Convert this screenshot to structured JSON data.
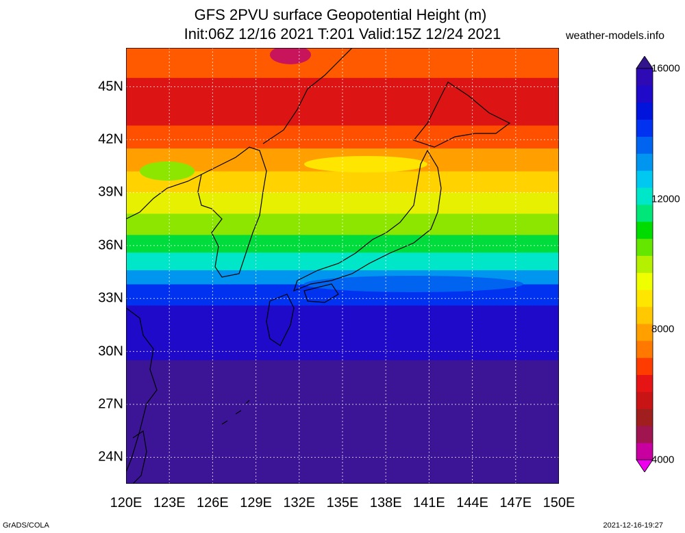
{
  "title_line1": "GFS 2PVU surface Geopotential Height (m)",
  "title_line2": "Init:06Z 12/16 2021 T:201 Valid:15Z 12/24 2021",
  "site": "weather-models.info",
  "footer_left": "GrADS/COLA",
  "footer_right": "2021-12-16-19:27",
  "lat_labels": [
    "45N",
    "42N",
    "39N",
    "36N",
    "33N",
    "30N",
    "27N",
    "24N"
  ],
  "lon_labels": [
    "120E",
    "123E",
    "126E",
    "129E",
    "132E",
    "135E",
    "138E",
    "141E",
    "144E",
    "147E",
    "150E"
  ],
  "colorbar": {
    "min": 4000,
    "max": 16000,
    "labels": [
      "16000",
      "12000",
      "8000",
      "4000"
    ],
    "colors": [
      "#ee00ee",
      "#c800a0",
      "#a01450",
      "#a01e1e",
      "#c81414",
      "#e61414",
      "#ff3c00",
      "#ff7800",
      "#ffa000",
      "#ffc800",
      "#ffe600",
      "#f0ff00",
      "#b4f000",
      "#64e600",
      "#00dc00",
      "#00e678",
      "#00e6c8",
      "#00c8f0",
      "#0096f0",
      "#0064f0",
      "#0032f0",
      "#0014dc",
      "#1e0ac8",
      "#2d0ab4",
      "#32148c"
    ]
  },
  "map_bands": [
    {
      "lat_top": 47.2,
      "lat_bottom": 45.5,
      "color": "#ff5a00"
    },
    {
      "lat_top": 45.5,
      "lat_bottom": 42.8,
      "color": "#dc1414"
    },
    {
      "lat_top": 42.8,
      "lat_bottom": 41.5,
      "color": "#ff5000"
    },
    {
      "lat_top": 41.5,
      "lat_bottom": 40.2,
      "color": "#ffa000"
    },
    {
      "lat_top": 40.2,
      "lat_bottom": 39.0,
      "color": "#ffd200"
    },
    {
      "lat_top": 39.0,
      "lat_bottom": 37.8,
      "color": "#e6f000"
    },
    {
      "lat_top": 37.8,
      "lat_bottom": 36.6,
      "color": "#8ce600"
    },
    {
      "lat_top": 36.6,
      "lat_bottom": 35.6,
      "color": "#00dc3c"
    },
    {
      "lat_top": 35.6,
      "lat_bottom": 34.6,
      "color": "#00e6c8"
    },
    {
      "lat_top": 34.6,
      "lat_bottom": 33.8,
      "color": "#0096f0"
    },
    {
      "lat_top": 33.8,
      "lat_bottom": 32.6,
      "color": "#0032f0"
    },
    {
      "lat_top": 32.6,
      "lat_bottom": 29.5,
      "color": "#1e0ac8"
    },
    {
      "lat_top": 29.5,
      "lat_bottom": 22.5,
      "color": "#3c1496"
    }
  ]
}
